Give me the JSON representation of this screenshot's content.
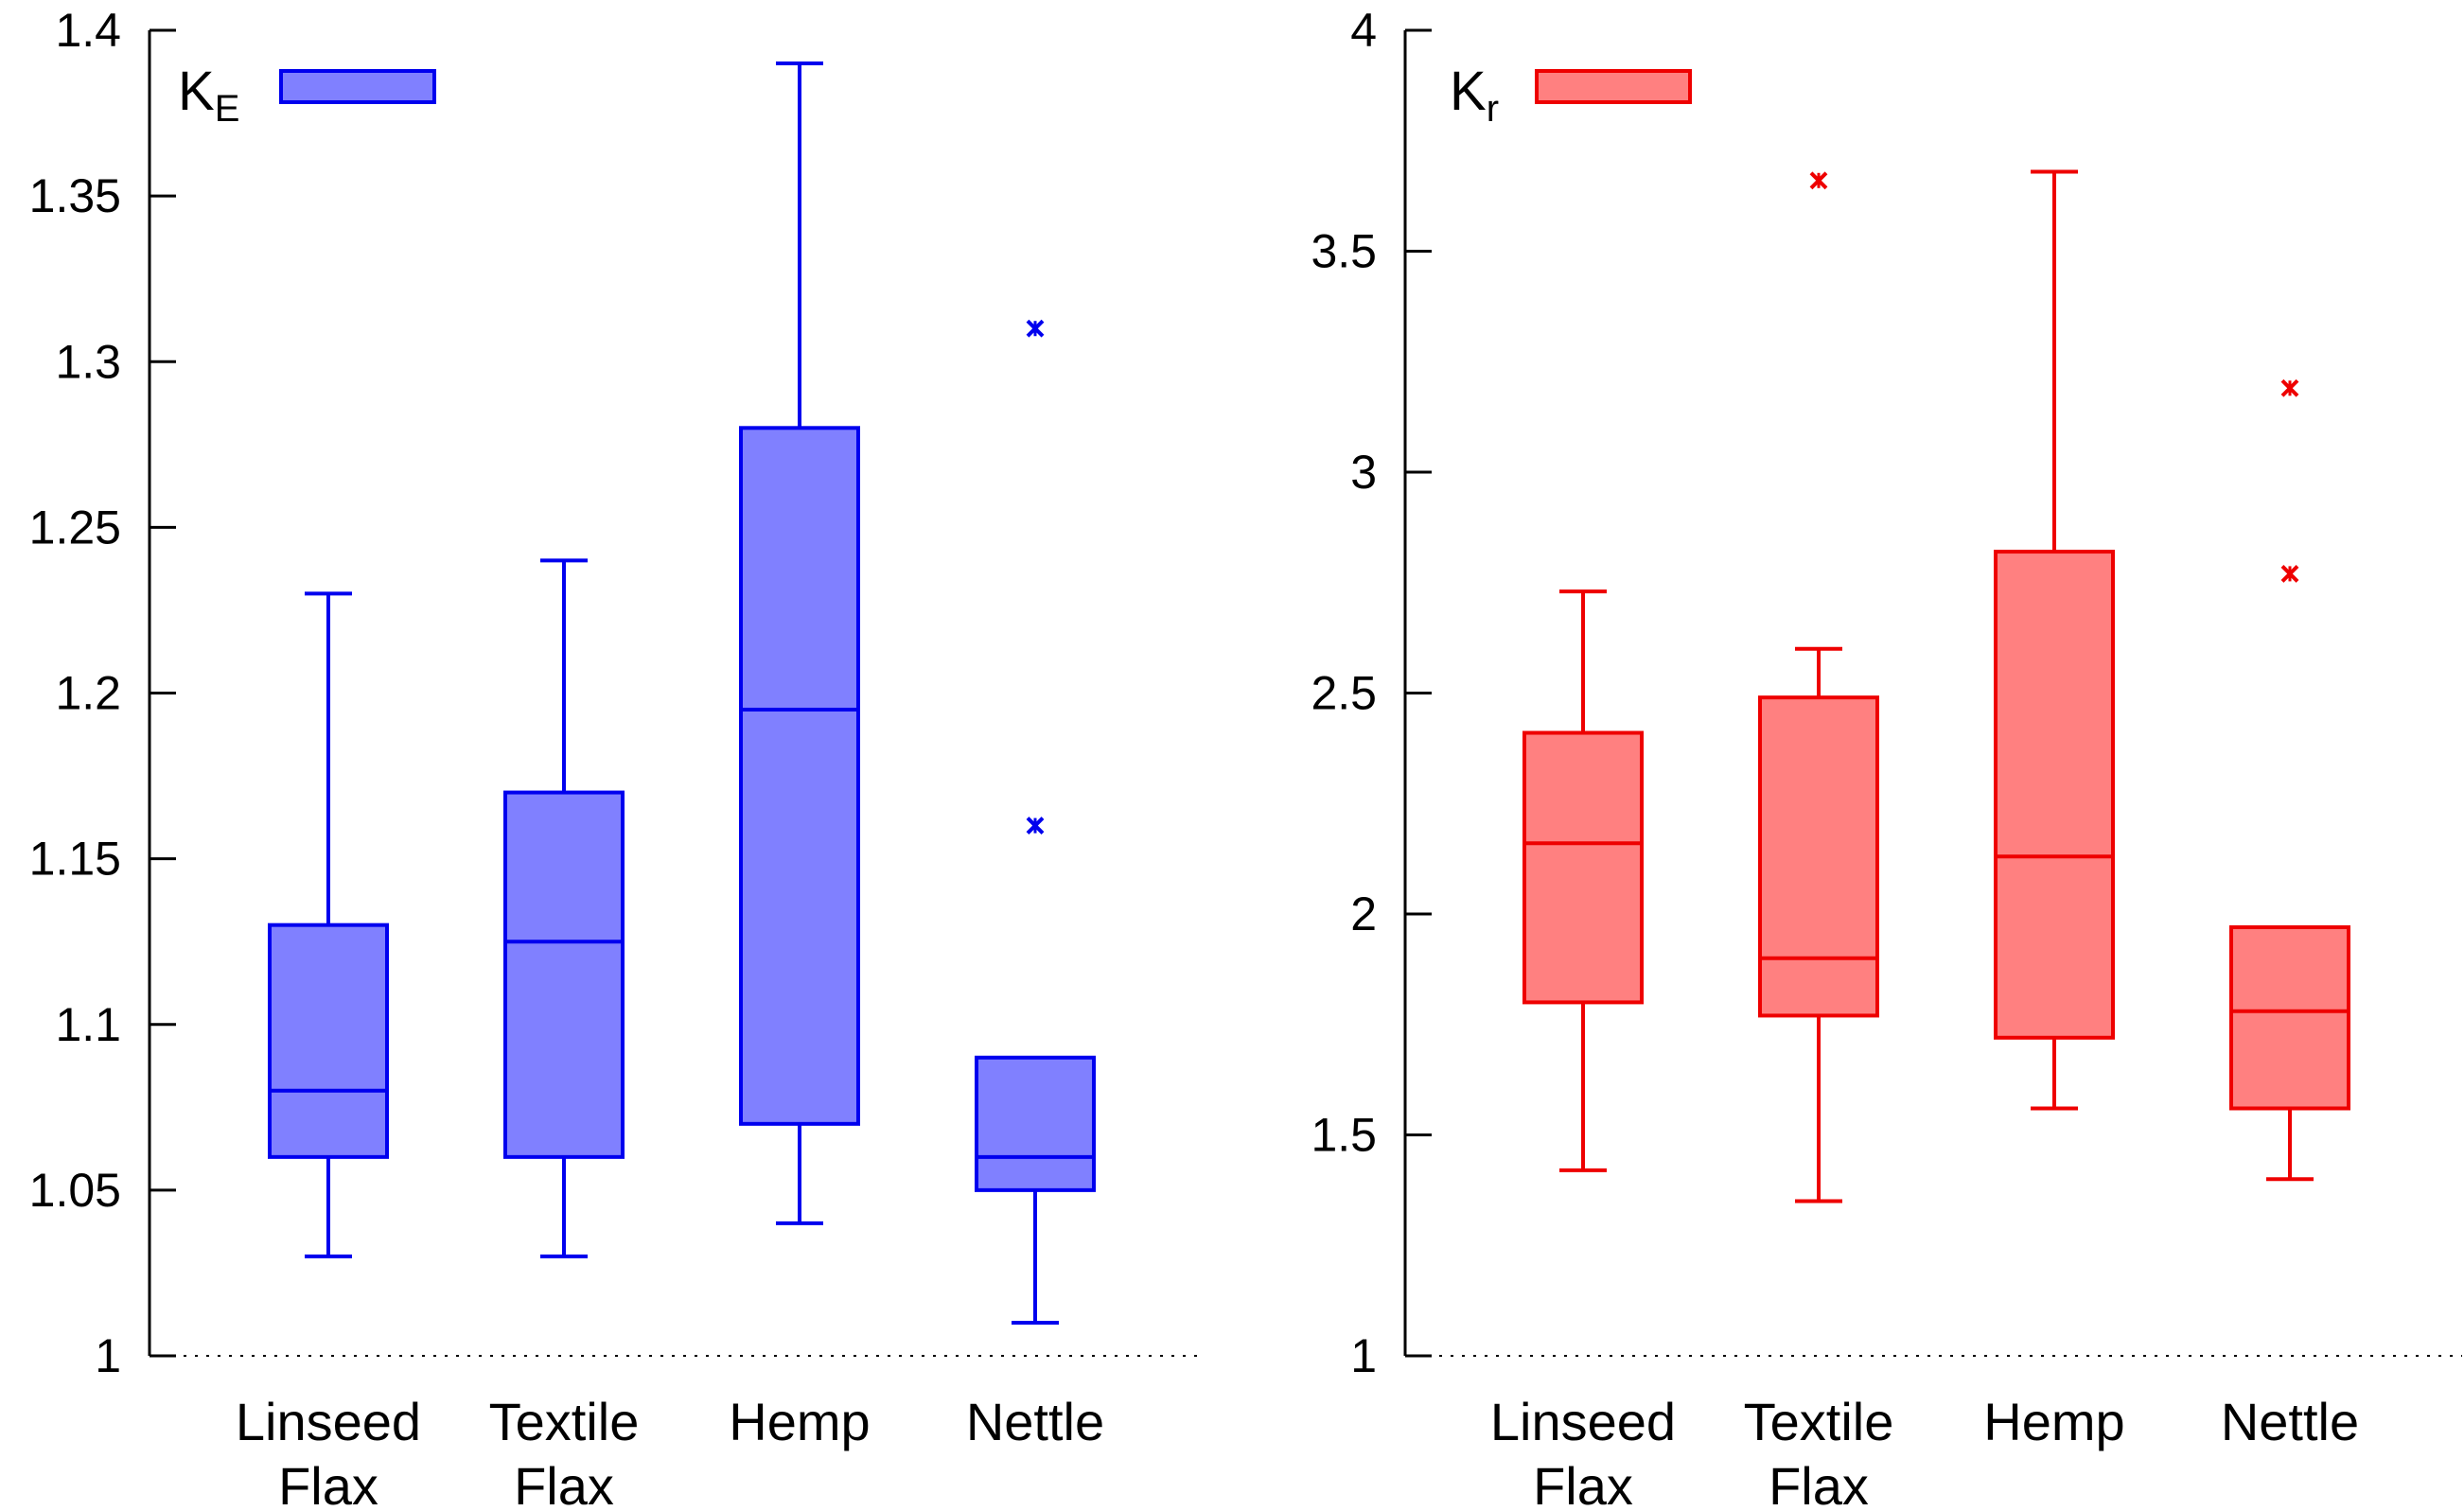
{
  "chart_data": [
    {
      "type": "box",
      "legend": {
        "symbol": "K",
        "subscript": "E",
        "placement": "top-left"
      },
      "color": {
        "stroke": "#0000ee",
        "fill": "#8080ff"
      },
      "ylim": [
        1,
        1.4
      ],
      "yticks": [
        "1",
        "1.05",
        "1.1",
        "1.15",
        "1.2",
        "1.25",
        "1.3",
        "1.35",
        "1.4"
      ],
      "categories": [
        {
          "line1": "Linseed",
          "line2": "Flax"
        },
        {
          "line1": "Textile",
          "line2": "Flax"
        },
        {
          "line1": "Hemp",
          "line2": ""
        },
        {
          "line1": "Nettle",
          "line2": ""
        }
      ],
      "boxes": [
        {
          "whisker_low": 1.03,
          "q1": 1.06,
          "median": 1.08,
          "q3": 1.13,
          "whisker_high": 1.23,
          "outliers": []
        },
        {
          "whisker_low": 1.03,
          "q1": 1.06,
          "median": 1.125,
          "q3": 1.17,
          "whisker_high": 1.24,
          "outliers": []
        },
        {
          "whisker_low": 1.04,
          "q1": 1.07,
          "median": 1.195,
          "q3": 1.28,
          "whisker_high": 1.39,
          "outliers": []
        },
        {
          "whisker_low": 1.01,
          "q1": 1.05,
          "median": 1.06,
          "q3": 1.09,
          "whisker_high": 1.09,
          "outliers": [
            1.16,
            1.31
          ]
        }
      ]
    },
    {
      "type": "box",
      "legend": {
        "symbol": "K",
        "subscript": "r",
        "placement": "top-left"
      },
      "color": {
        "stroke": "#ee0000",
        "fill": "#ff8080"
      },
      "ylim": [
        1,
        4
      ],
      "yticks": [
        "1",
        "1.5",
        "2",
        "2.5",
        "3",
        "3.5",
        "4"
      ],
      "categories": [
        {
          "line1": "Linseed",
          "line2": "Flax"
        },
        {
          "line1": "Textile",
          "line2": "Flax"
        },
        {
          "line1": "Hemp",
          "line2": ""
        },
        {
          "line1": "Nettle",
          "line2": ""
        }
      ],
      "boxes": [
        {
          "whisker_low": 1.42,
          "q1": 1.8,
          "median": 2.16,
          "q3": 2.41,
          "whisker_high": 2.73,
          "outliers": []
        },
        {
          "whisker_low": 1.35,
          "q1": 1.77,
          "median": 1.9,
          "q3": 2.49,
          "whisker_high": 2.6,
          "outliers": [
            3.66
          ]
        },
        {
          "whisker_low": 1.56,
          "q1": 1.72,
          "median": 2.13,
          "q3": 2.82,
          "whisker_high": 3.68,
          "outliers": []
        },
        {
          "whisker_low": 1.4,
          "q1": 1.56,
          "median": 1.78,
          "q3": 1.97,
          "whisker_high": 1.97,
          "outliers": [
            2.77,
            3.19
          ]
        }
      ]
    }
  ]
}
